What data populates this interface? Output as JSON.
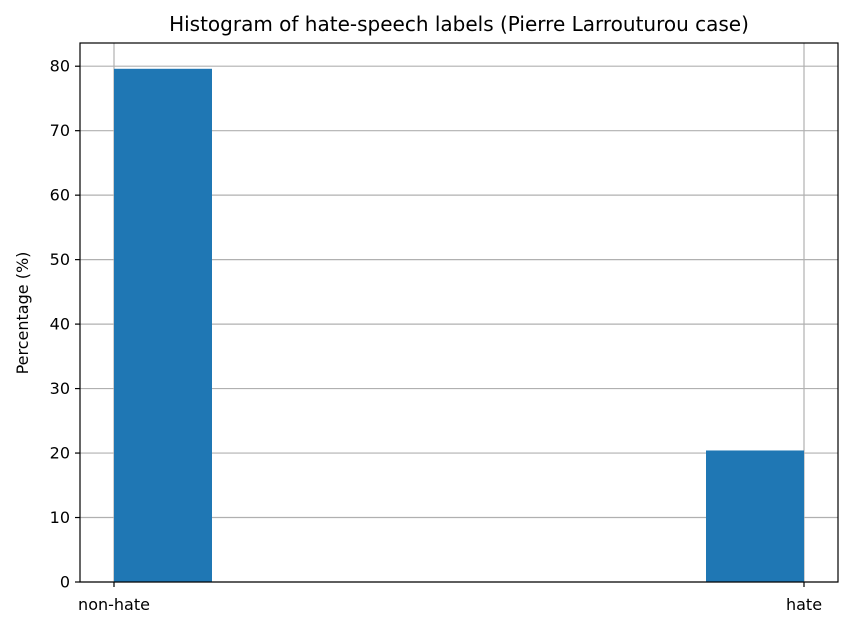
{
  "chart_data": {
    "type": "bar",
    "title": "Histogram of hate-speech labels (Pierre Larrouturou case)",
    "xlabel": "",
    "ylabel": "Percentage (%)",
    "categories": [
      "non-hate",
      "hate"
    ],
    "values": [
      79.6,
      20.4
    ],
    "ylim": [
      0,
      83.6
    ],
    "yticks": [
      0,
      10,
      20,
      30,
      40,
      50,
      60,
      70,
      80
    ],
    "grid": true,
    "bar_color": "#1f77b4",
    "grid_color": "#b0b0b0"
  }
}
